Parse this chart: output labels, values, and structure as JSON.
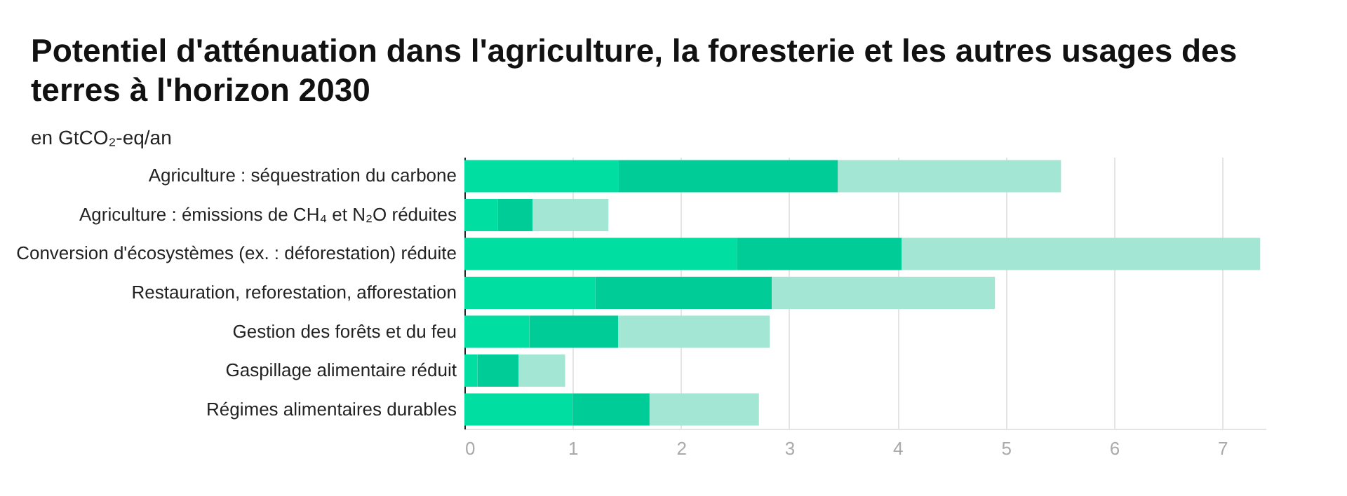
{
  "chart_data": {
    "type": "bar",
    "orientation": "horizontal",
    "stacked": true,
    "title": "Potentiel d'atténuation dans l'agriculture, la foresterie et les autres usages des terres à l'horizon 2030",
    "subtitle": "en GtCO₂-eq/an",
    "categories": [
      "Agriculture : séquestration du carbone",
      "Agriculture : émissions de CH₄ et N₂O réduites",
      "Conversion d'écosystèmes (ex. : déforestation) réduite",
      "Restauration, reforestation, afforestation",
      "Gestion des forêts et du feu",
      "Gaspillage alimentaire réduit",
      "Régimes alimentaires durables"
    ],
    "series": [
      {
        "color": "#00dea2",
        "values": [
          1.42,
          0.31,
          2.52,
          1.21,
          0.6,
          0.12,
          1.0
        ]
      },
      {
        "color": "#00cc98",
        "values": [
          2.03,
          0.32,
          1.52,
          1.63,
          0.82,
          0.38,
          0.71
        ]
      },
      {
        "color": "#a3e6d3",
        "values": [
          2.06,
          0.7,
          3.31,
          2.06,
          1.4,
          0.43,
          1.01
        ]
      }
    ],
    "xlim": [
      0,
      7.4
    ],
    "xticks": [
      0,
      1,
      2,
      3,
      4,
      5,
      6,
      7
    ],
    "grid": "x",
    "legend": false
  }
}
